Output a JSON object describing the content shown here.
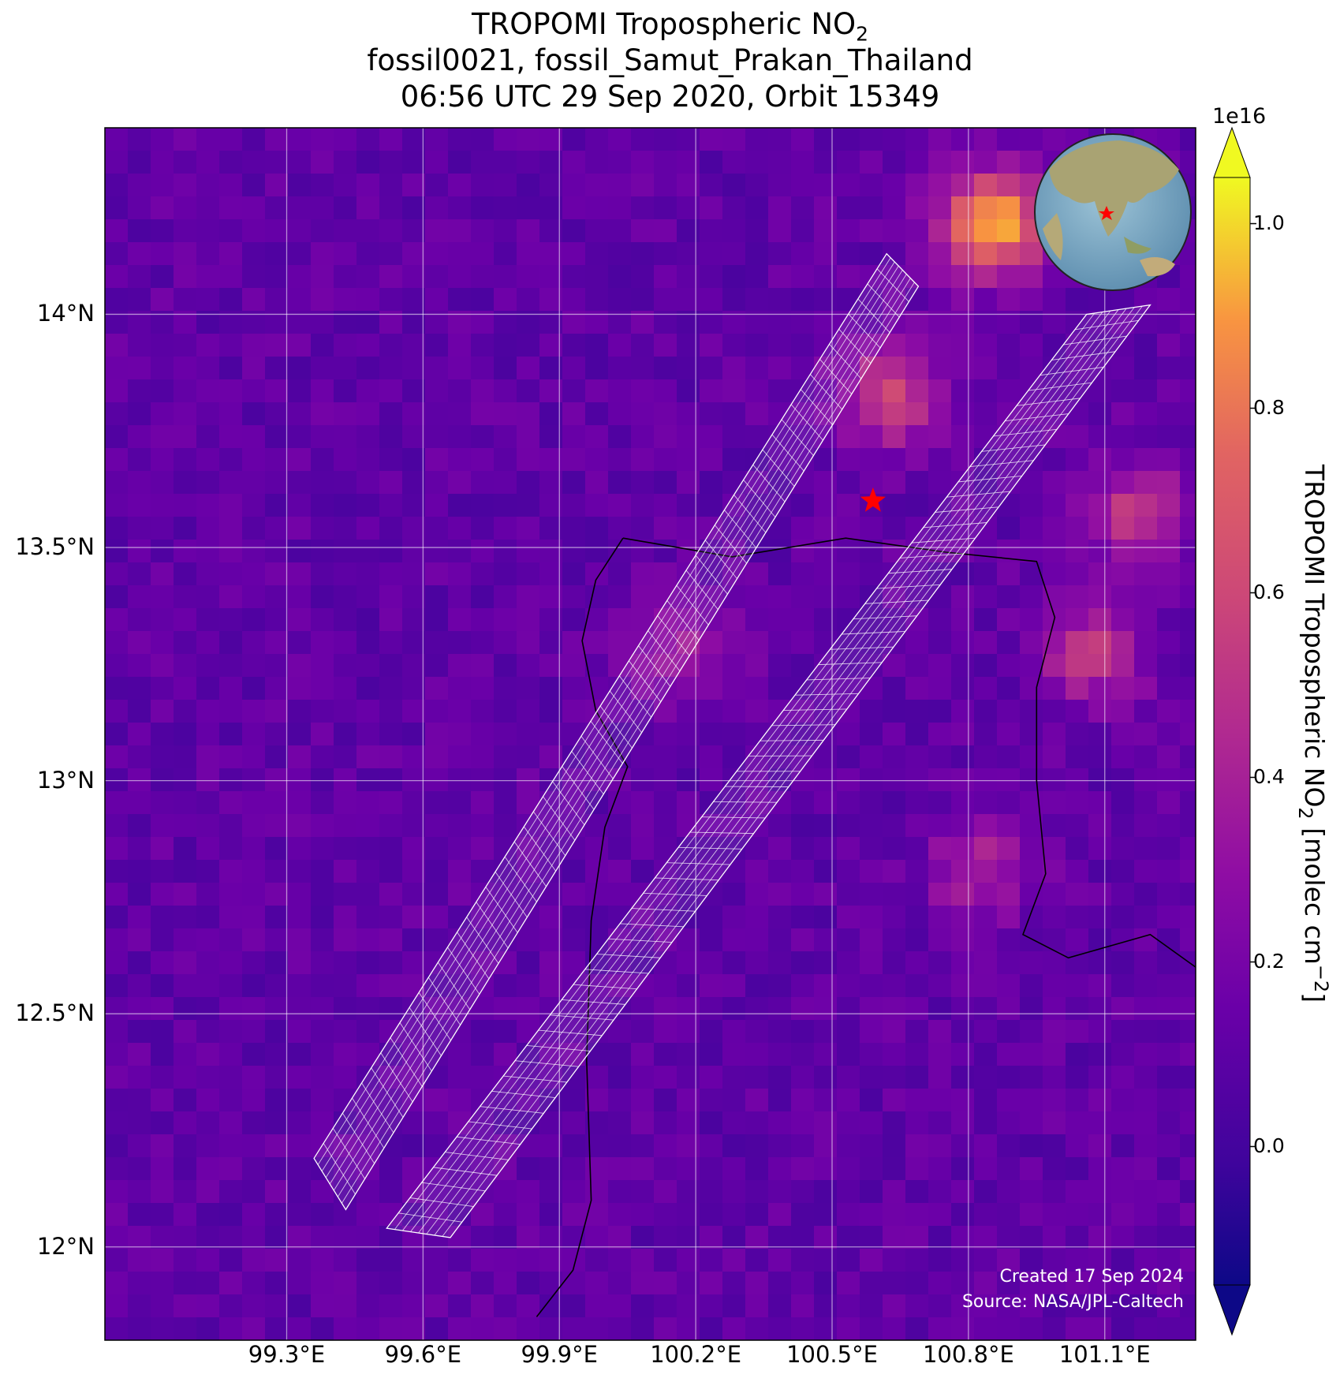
{
  "title": {
    "line1": "TROPOMI Tropospheric NO",
    "line1_sub": "2",
    "line2": "fossil0021, fossil_Samut_Prakan_Thailand",
    "line3": "06:56 UTC 29 Sep 2020, Orbit 15349"
  },
  "map": {
    "lon_range": [
      98.9,
      101.3
    ],
    "lat_range": [
      11.8,
      14.4
    ],
    "x_ticks": [
      {
        "value": 99.3,
        "label": "99.3°E"
      },
      {
        "value": 99.6,
        "label": "99.6°E"
      },
      {
        "value": 99.9,
        "label": "99.9°E"
      },
      {
        "value": 100.2,
        "label": "100.2°E"
      },
      {
        "value": 100.5,
        "label": "100.5°E"
      },
      {
        "value": 100.8,
        "label": "100.8°E"
      },
      {
        "value": 101.1,
        "label": "101.1°E"
      }
    ],
    "y_ticks": [
      {
        "value": 14.0,
        "label": "14°N"
      },
      {
        "value": 13.5,
        "label": "13.5°N"
      },
      {
        "value": 13.0,
        "label": "13°N"
      },
      {
        "value": 12.5,
        "label": "12.5°N"
      },
      {
        "value": 12.0,
        "label": "12°N"
      }
    ],
    "gridlines": true,
    "target_marker": {
      "lon": 100.59,
      "lat": 13.6,
      "symbol": "star",
      "color": "#ff0000"
    },
    "no2_hotspots": [
      {
        "lon": 100.83,
        "lat": 14.22,
        "value": 1.0
      },
      {
        "lon": 100.6,
        "lat": 13.85,
        "value": 0.6
      },
      {
        "lon": 101.05,
        "lat": 13.3,
        "value": 0.55
      },
      {
        "lon": 101.15,
        "lat": 13.6,
        "value": 0.55
      },
      {
        "lon": 100.15,
        "lat": 13.3,
        "value": 0.4
      },
      {
        "lon": 100.8,
        "lat": 12.83,
        "value": 0.45
      }
    ],
    "swaths": [
      {
        "name": "swath-left",
        "corners": [
          [
            99.36,
            12.19
          ],
          [
            99.43,
            12.08
          ],
          [
            100.69,
            14.06
          ],
          [
            100.62,
            14.13
          ]
        ]
      },
      {
        "name": "swath-right",
        "corners": [
          [
            99.52,
            12.04
          ],
          [
            99.66,
            12.02
          ],
          [
            101.2,
            14.02
          ],
          [
            101.06,
            14.0
          ]
        ]
      }
    ],
    "coastline": [
      [
        100.04,
        13.52
      ],
      [
        100.28,
        13.48
      ],
      [
        100.53,
        13.52
      ],
      [
        100.75,
        13.49
      ],
      [
        100.95,
        13.47
      ],
      [
        100.99,
        13.35
      ],
      [
        100.95,
        13.2
      ],
      [
        100.95,
        13.0
      ],
      [
        100.97,
        12.8
      ],
      [
        100.92,
        12.67
      ],
      [
        101.02,
        12.62
      ],
      [
        101.2,
        12.67
      ],
      [
        101.3,
        12.6
      ],
      [
        101.35,
        12.55
      ]
    ],
    "coastline_west": [
      [
        100.04,
        13.52
      ],
      [
        99.98,
        13.43
      ],
      [
        99.95,
        13.3
      ],
      [
        99.98,
        13.15
      ],
      [
        100.05,
        13.03
      ],
      [
        100.0,
        12.9
      ],
      [
        99.97,
        12.7
      ],
      [
        99.96,
        12.4
      ],
      [
        99.97,
        12.1
      ],
      [
        99.93,
        11.95
      ],
      [
        99.85,
        11.85
      ]
    ],
    "inset_globe": {
      "center_lon": 100.6,
      "center_lat": 13.6
    }
  },
  "colorbar": {
    "exponent": "1e16",
    "range": [
      -0.15,
      1.05
    ],
    "ticks": [
      {
        "value": 1.0,
        "label": "1.0"
      },
      {
        "value": 0.8,
        "label": "0.8"
      },
      {
        "value": 0.6,
        "label": "0.6"
      },
      {
        "value": 0.4,
        "label": "0.4"
      },
      {
        "value": 0.2,
        "label": "0.2"
      },
      {
        "value": 0.0,
        "label": "0.0"
      }
    ],
    "label_prefix": "TROPOMI Tropospheric NO",
    "label_sub": "2",
    "label_mid": " [molec cm",
    "label_sup": "−2",
    "label_suffix": "]",
    "colormap": "plasma"
  },
  "credits": {
    "created": "Created 17 Sep 2024",
    "source": "Source: NASA/JPL-Caltech"
  }
}
